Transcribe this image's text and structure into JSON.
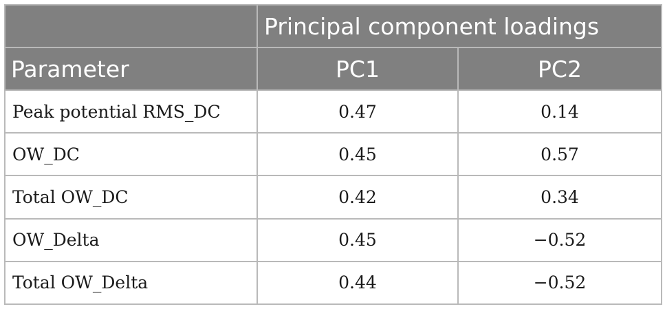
{
  "table": {
    "group_header": "Principal component loadings",
    "columns": {
      "parameter": "Parameter",
      "pc1": "PC1",
      "pc2": "PC2"
    },
    "rows": [
      {
        "parameter": "Peak potential RMS_DC",
        "pc1": "0.47",
        "pc2": "0.14"
      },
      {
        "parameter": "OW_DC",
        "pc1": "0.45",
        "pc2": "0.57"
      },
      {
        "parameter": "Total OW_DC",
        "pc1": "0.42",
        "pc2": "0.34"
      },
      {
        "parameter": "OW_Delta",
        "pc1": "0.45",
        "pc2": "−0.52"
      },
      {
        "parameter": "Total OW_Delta",
        "pc1": "0.44",
        "pc2": "−0.52"
      }
    ]
  },
  "colors": {
    "header_background": "#808080",
    "header_text": "#ffffff",
    "border": "#b9b9b9"
  }
}
